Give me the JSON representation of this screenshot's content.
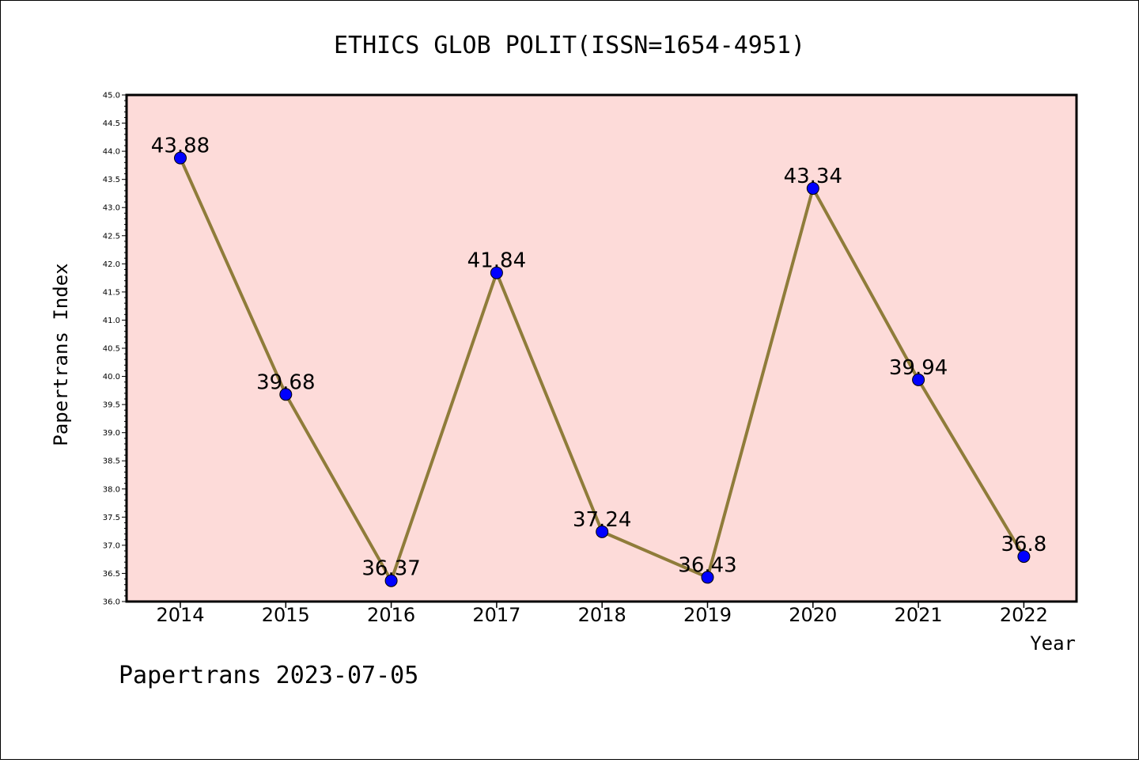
{
  "chart_data": {
    "type": "line",
    "title": "ETHICS GLOB POLIT(ISSN=1654-4951)",
    "xlabel": "Year",
    "ylabel": "Papertrans Index",
    "footer": "Papertrans 2023-07-05",
    "categories": [
      "2014",
      "2015",
      "2016",
      "2017",
      "2018",
      "2019",
      "2020",
      "2021",
      "2022"
    ],
    "series": [
      {
        "values": [
          43.88,
          39.68,
          36.37,
          41.84,
          37.24,
          36.43,
          43.34,
          39.94,
          36.8
        ],
        "labels": [
          "43.88",
          "39.68",
          "36.37",
          "41.84",
          "37.24",
          "36.43",
          "43.34",
          "39.94",
          "36.8"
        ],
        "line_color": "#8f7c3a",
        "marker_color": "#0000ff"
      }
    ],
    "ylim": [
      36.0,
      45.0
    ],
    "yticks": [
      "36.0",
      "36.5",
      "37.0",
      "37.5",
      "38.0",
      "38.5",
      "39.0",
      "39.5",
      "40.0",
      "40.5",
      "41.0",
      "41.5",
      "42.0",
      "42.5",
      "43.0",
      "43.5",
      "44.0",
      "44.5",
      "45.0"
    ],
    "background_color": "#fddbd9",
    "grid": false,
    "legend": "none"
  }
}
